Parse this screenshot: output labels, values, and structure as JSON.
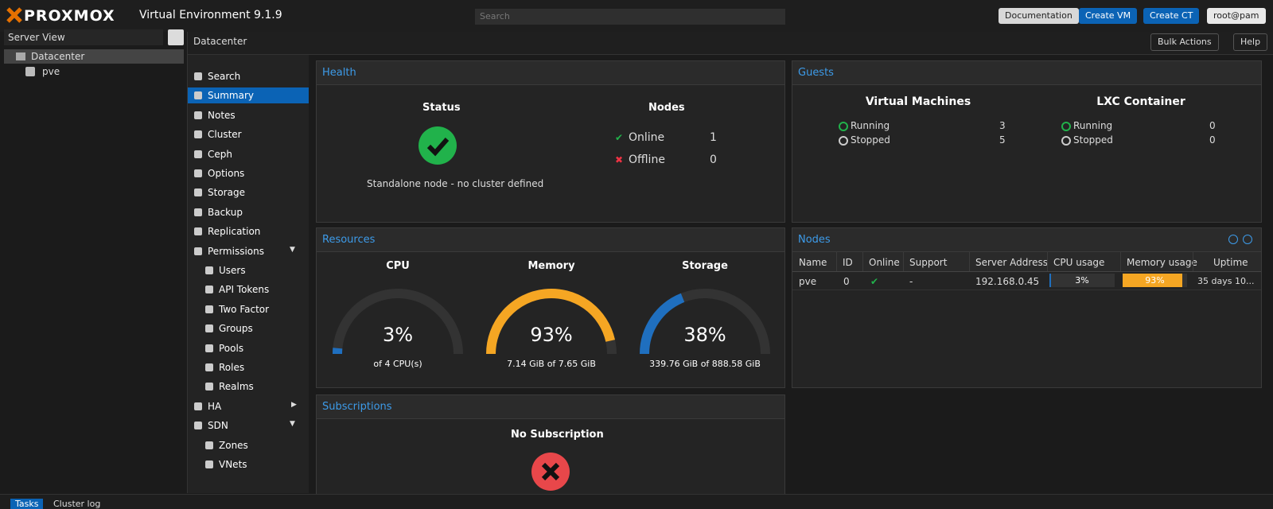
{
  "header": {
    "logo": "PROXMOX",
    "version": "Virtual Environment 9.1.9",
    "search_placeholder": "Search",
    "buttons": [
      "Documentation",
      "Create VM",
      "Create CT",
      "root@pam"
    ]
  },
  "tree": {
    "view": "Server View",
    "items": [
      "Datacenter",
      "pve"
    ]
  },
  "toolbar": {
    "breadcrumb": "Datacenter",
    "buttons": [
      "Bulk Actions",
      "Help"
    ]
  },
  "menu": {
    "items": [
      "Search",
      "Summary",
      "Notes",
      "Cluster",
      "Ceph",
      "Options",
      "Storage",
      "Backup",
      "Replication",
      "Permissions",
      "Users",
      "API Tokens",
      "Two Factor",
      "Groups",
      "Pools",
      "Roles",
      "Realms",
      "HA",
      "SDN",
      "Zones",
      "VNets"
    ]
  },
  "health": {
    "title": "Health",
    "status_heading": "Status",
    "status_text": "Standalone node - no cluster defined",
    "nodes_heading": "Nodes",
    "online_label": "Online",
    "online": 1,
    "offline_label": "Offline",
    "offline": 0
  },
  "guests": {
    "title": "Guests",
    "groups": [
      {
        "heading": "Virtual Machines",
        "rows": [
          {
            "label": "Running",
            "count": 3
          },
          {
            "label": "Stopped",
            "count": 5
          }
        ]
      },
      {
        "heading": "LXC Container",
        "rows": [
          {
            "label": "Running",
            "count": 0
          },
          {
            "label": "Stopped",
            "count": 0
          }
        ]
      }
    ]
  },
  "resources": {
    "title": "Resources",
    "gauges": [
      {
        "name": "CPU",
        "value": 3,
        "label": "3%",
        "detail": "of 4 CPU(s)",
        "color": "#1f6fbf"
      },
      {
        "name": "Memory",
        "value": 93,
        "label": "93%",
        "detail": "7.14 GiB of 7.65 GiB",
        "color": "#f5a623"
      },
      {
        "name": "Storage",
        "value": 38,
        "label": "38%",
        "detail": "339.76 GiB of 888.58 GiB",
        "color": "#1f6fbf"
      }
    ]
  },
  "nodes": {
    "title": "Nodes",
    "columns": [
      "Name",
      "ID",
      "Online",
      "Support",
      "Server Address",
      "CPU usage",
      "Memory usage",
      "Uptime"
    ],
    "rows": [
      {
        "name": "pve",
        "id": 0,
        "support": "-",
        "address": "192.168.0.45",
        "cpu": 3,
        "cpu_label": "3%",
        "memory": 93,
        "memory_label": "93%",
        "uptime": "35 days 10..."
      }
    ]
  },
  "subscriptions": {
    "title": "Subscriptions",
    "heading": "No Subscription"
  },
  "footer": {
    "tabs": [
      "Tasks",
      "Cluster log"
    ]
  }
}
